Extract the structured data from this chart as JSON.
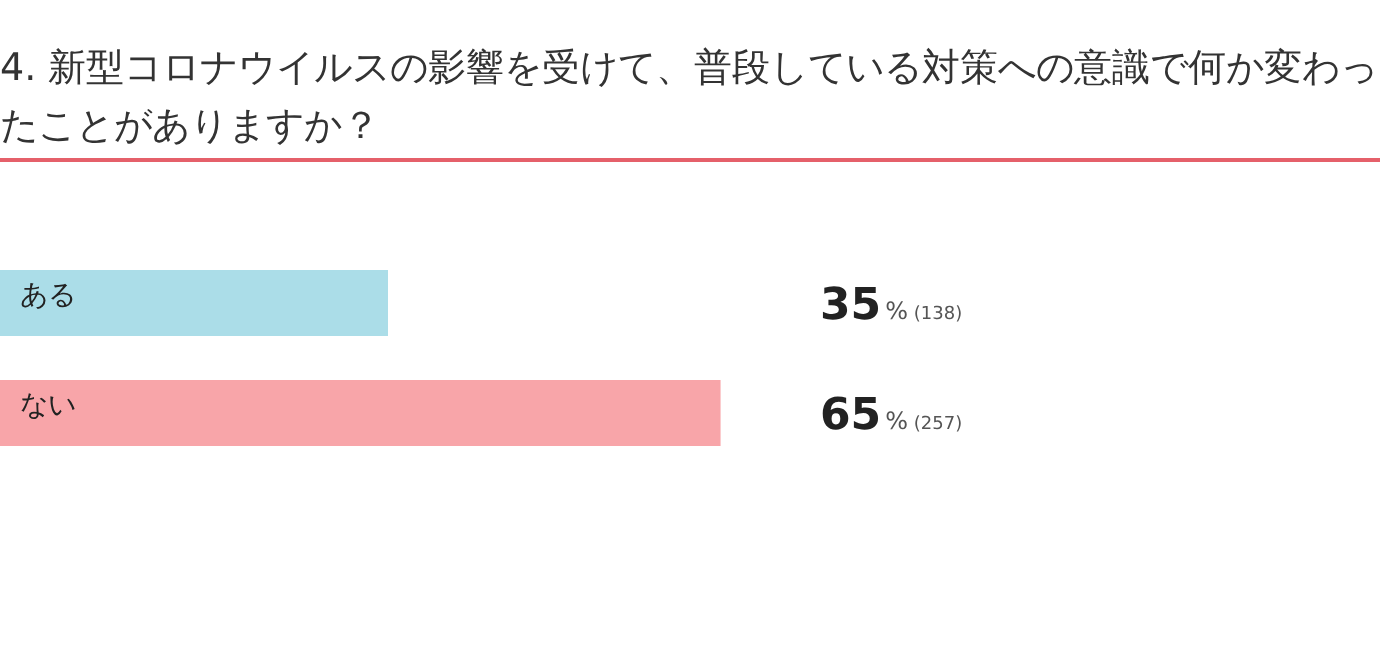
{
  "chart_data": {
    "type": "bar",
    "orientation": "horizontal",
    "title": "4. 新型コロナウイルスの影響を受けて、普段している対策への意識で何か変わったことがありますか？",
    "categories": [
      "ある",
      "ない"
    ],
    "values": [
      35,
      65
    ],
    "colors": [
      "#abdde8",
      "#f8a5a9"
    ],
    "value_labels": [
      "35% (138)",
      "65% (257)"
    ],
    "tick_labels": "y",
    "legend": false
  }
}
